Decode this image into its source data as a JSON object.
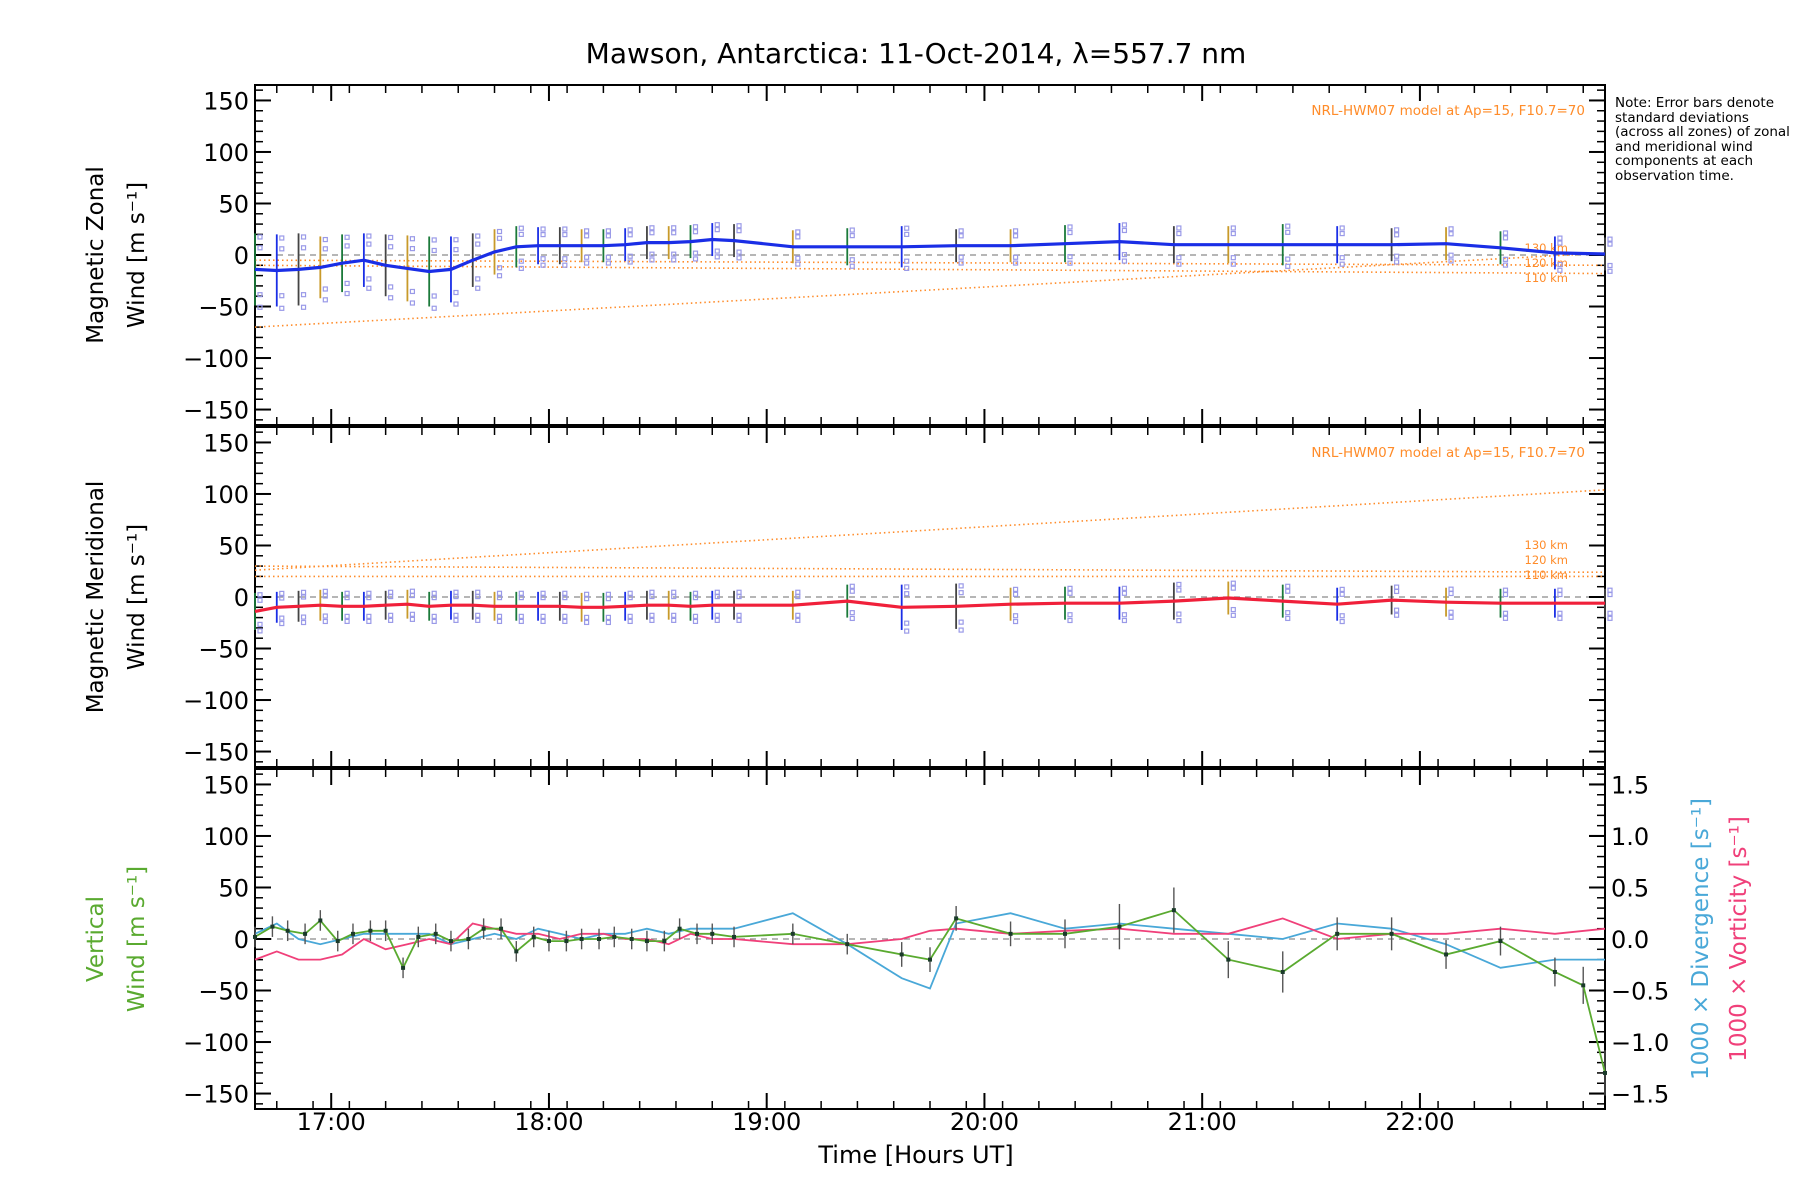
{
  "title": "Mawson, Antarctica: 11-Oct-2014, λ=557.7 nm",
  "note": "Note: Error bars denote standard deviations (across all zones) of zonal and meridional wind components at each observation time.",
  "xlabel": "Time [Hours UT]",
  "colors": {
    "zonal": "#1a2ee6",
    "meridional": "#f0203a",
    "vertical": "#5aaa30",
    "divergence": "#49a8d8",
    "vorticity": "#f0407a",
    "model": "#ff8c2a",
    "zone_points": "#9a9ae8",
    "axis": "#000000"
  },
  "chart_data": [
    {
      "type": "line",
      "panel": "zonal",
      "ylabel_line1": "Magnetic Zonal",
      "ylabel_line2": "Wind [m s⁻¹]",
      "model_label": "NRL-HWM07 model at Ap=15, F10.7=70",
      "model_alt_labels": [
        "130 km",
        "120 km",
        "110 km"
      ],
      "xlim": [
        16.65,
        22.85
      ],
      "ylim": [
        -165,
        165
      ],
      "y_ticks": [
        150,
        100,
        50,
        0,
        -50,
        -100,
        -150
      ],
      "x_ticks": [
        "17:00",
        "18:00",
        "19:00",
        "20:00",
        "21:00",
        "22:00"
      ],
      "series": [
        {
          "role": "wind",
          "x": [
            16.65,
            16.75,
            16.85,
            16.95,
            17.05,
            17.15,
            17.25,
            17.35,
            17.45,
            17.55,
            17.65,
            17.75,
            17.85,
            17.95,
            18.05,
            18.15,
            18.25,
            18.35,
            18.45,
            18.55,
            18.65,
            18.75,
            18.85,
            19.12,
            19.37,
            19.62,
            19.87,
            20.12,
            20.37,
            20.62,
            20.87,
            21.12,
            21.37,
            21.62,
            21.87,
            22.12,
            22.37,
            22.62,
            22.85
          ],
          "y": [
            -14,
            -15,
            -14,
            -12,
            -8,
            -5,
            -10,
            -13,
            -16,
            -14,
            -5,
            3,
            8,
            9,
            9,
            9,
            9,
            10,
            12,
            12,
            13,
            15,
            14,
            8,
            8,
            8,
            9,
            9,
            11,
            13,
            10,
            10,
            10,
            10,
            10,
            11,
            7,
            2,
            1
          ],
          "err": [
            35,
            35,
            35,
            30,
            28,
            26,
            30,
            32,
            34,
            32,
            26,
            22,
            20,
            18,
            18,
            16,
            16,
            16,
            16,
            16,
            16,
            16,
            16,
            16,
            18,
            20,
            16,
            16,
            18,
            18,
            18,
            18,
            20,
            18,
            16,
            16,
            16,
            16,
            16
          ]
        },
        {
          "role": "model",
          "label": "130 km",
          "x": [
            16.65,
            22.85
          ],
          "y": [
            -70,
            2
          ]
        },
        {
          "role": "model",
          "label": "120 km",
          "x": [
            16.65,
            22.85
          ],
          "y": [
            -5,
            -10
          ]
        },
        {
          "role": "model",
          "label": "110 km",
          "x": [
            16.65,
            22.85
          ],
          "y": [
            -10,
            -18
          ]
        }
      ]
    },
    {
      "type": "line",
      "panel": "meridional",
      "ylabel_line1": "Magnetic Meridional",
      "ylabel_line2": "Wind [m s⁻¹]",
      "model_label": "NRL-HWM07 model at Ap=15, F10.7=70",
      "model_alt_labels": [
        "130 km",
        "120 km",
        "110 km"
      ],
      "xlim": [
        16.65,
        22.85
      ],
      "ylim": [
        -165,
        165
      ],
      "y_ticks": [
        150,
        100,
        50,
        0,
        -50,
        -100,
        -150
      ],
      "series": [
        {
          "role": "wind",
          "x": [
            16.65,
            16.75,
            16.85,
            16.95,
            17.05,
            17.15,
            17.25,
            17.35,
            17.45,
            17.55,
            17.65,
            17.75,
            17.85,
            17.95,
            18.05,
            18.15,
            18.25,
            18.35,
            18.45,
            18.55,
            18.65,
            18.75,
            18.85,
            19.12,
            19.37,
            19.62,
            19.87,
            20.12,
            20.37,
            20.62,
            20.87,
            21.12,
            21.37,
            21.62,
            21.87,
            22.12,
            22.37,
            22.62,
            22.85
          ],
          "y": [
            -14,
            -10,
            -9,
            -8,
            -9,
            -9,
            -8,
            -7,
            -9,
            -8,
            -8,
            -9,
            -9,
            -9,
            -9,
            -10,
            -10,
            -9,
            -8,
            -8,
            -9,
            -8,
            -8,
            -8,
            -4,
            -10,
            -9,
            -7,
            -6,
            -6,
            -4,
            -1,
            -4,
            -7,
            -3,
            -5,
            -6,
            -6,
            -6
          ],
          "err": [
            18,
            15,
            15,
            15,
            14,
            14,
            14,
            14,
            14,
            14,
            14,
            14,
            14,
            14,
            14,
            14,
            14,
            14,
            14,
            14,
            14,
            14,
            14,
            14,
            16,
            22,
            22,
            16,
            16,
            16,
            18,
            16,
            16,
            16,
            14,
            14,
            14,
            14,
            14
          ]
        },
        {
          "role": "model",
          "label": "130 km",
          "x": [
            16.65,
            22.85
          ],
          "y": [
            26,
            104
          ]
        },
        {
          "role": "model",
          "label": "120 km",
          "x": [
            16.65,
            22.85
          ],
          "y": [
            30,
            24
          ]
        },
        {
          "role": "model",
          "label": "110 km",
          "x": [
            16.65,
            22.85
          ],
          "y": [
            20,
            20
          ]
        }
      ]
    },
    {
      "type": "line",
      "panel": "vertical",
      "ylabel_line1": "Vertical",
      "ylabel_line2": "Wind [m s⁻¹]",
      "ylabel_right1": "1000 × Divergence [s⁻¹]",
      "ylabel_right2": "1000 × Vorticity [s⁻¹]",
      "xlim": [
        16.65,
        22.85
      ],
      "ylim": [
        -165,
        165
      ],
      "y2lim": [
        -1.65,
        1.65
      ],
      "y_ticks": [
        150,
        100,
        50,
        0,
        -50,
        -100,
        -150
      ],
      "y2_ticks": [
        "1.5",
        "1.0",
        "0.5",
        "0.0",
        "−0.5",
        "−1.0",
        "−1.5"
      ],
      "y2_tick_values": [
        1.5,
        1.0,
        0.5,
        0.0,
        -0.5,
        -1.0,
        -1.5
      ],
      "series": [
        {
          "name": "Vertical",
          "x": [
            16.65,
            16.73,
            16.8,
            16.88,
            16.95,
            17.03,
            17.1,
            17.18,
            17.25,
            17.33,
            17.4,
            17.48,
            17.55,
            17.63,
            17.7,
            17.78,
            17.85,
            17.93,
            18.0,
            18.08,
            18.15,
            18.23,
            18.3,
            18.38,
            18.45,
            18.53,
            18.6,
            18.68,
            18.75,
            18.85,
            19.12,
            19.37,
            19.62,
            19.75,
            19.87,
            20.12,
            20.37,
            20.62,
            20.87,
            21.12,
            21.37,
            21.62,
            21.87,
            22.12,
            22.37,
            22.62,
            22.75,
            22.85
          ],
          "y": [
            2,
            12,
            8,
            5,
            18,
            -2,
            5,
            8,
            8,
            -28,
            2,
            5,
            -2,
            0,
            10,
            10,
            -12,
            2,
            -2,
            -2,
            0,
            0,
            2,
            0,
            -2,
            -2,
            10,
            5,
            5,
            2,
            5,
            -5,
            -15,
            -20,
            20,
            5,
            5,
            12,
            28,
            -20,
            -32,
            5,
            5,
            -15,
            -2,
            -32,
            -45,
            -130
          ],
          "err": [
            10,
            10,
            10,
            10,
            10,
            10,
            10,
            10,
            10,
            10,
            10,
            10,
            10,
            10,
            10,
            10,
            10,
            10,
            10,
            10,
            10,
            10,
            10,
            10,
            10,
            10,
            10,
            10,
            10,
            10,
            10,
            10,
            12,
            12,
            12,
            12,
            14,
            22,
            22,
            18,
            20,
            16,
            16,
            14,
            14,
            14,
            18,
            22
          ]
        },
        {
          "name": "1000 × Divergence",
          "axis": "right",
          "x": [
            16.65,
            16.75,
            16.85,
            16.95,
            17.05,
            17.15,
            17.25,
            17.35,
            17.45,
            17.55,
            17.65,
            17.75,
            17.85,
            17.95,
            18.05,
            18.15,
            18.25,
            18.35,
            18.45,
            18.55,
            18.65,
            18.75,
            18.85,
            19.12,
            19.37,
            19.62,
            19.75,
            19.87,
            20.12,
            20.37,
            20.62,
            20.87,
            21.12,
            21.37,
            21.62,
            21.87,
            22.12,
            22.37,
            22.62,
            22.85
          ],
          "y": [
            0.05,
            0.15,
            0.0,
            -0.05,
            0.0,
            0.05,
            0.05,
            0.05,
            0.05,
            -0.05,
            0.0,
            0.05,
            0.0,
            0.1,
            0.05,
            0.0,
            0.05,
            0.05,
            0.1,
            0.05,
            0.1,
            0.1,
            0.1,
            0.25,
            -0.05,
            -0.38,
            -0.48,
            0.15,
            0.25,
            0.1,
            0.15,
            0.1,
            0.05,
            0.0,
            0.15,
            0.1,
            -0.05,
            -0.28,
            -0.2,
            -0.2
          ]
        },
        {
          "name": "1000 × Vorticity",
          "axis": "right",
          "x": [
            16.65,
            16.75,
            16.85,
            16.95,
            17.05,
            17.15,
            17.25,
            17.35,
            17.45,
            17.55,
            17.65,
            17.75,
            17.85,
            17.95,
            18.05,
            18.15,
            18.25,
            18.35,
            18.45,
            18.55,
            18.65,
            18.75,
            18.85,
            19.12,
            19.37,
            19.62,
            19.75,
            19.87,
            20.12,
            20.37,
            20.62,
            20.87,
            21.12,
            21.37,
            21.62,
            21.87,
            22.12,
            22.37,
            22.62,
            22.85
          ],
          "y": [
            -0.2,
            -0.12,
            -0.2,
            -0.2,
            -0.15,
            0.0,
            -0.1,
            -0.05,
            0.0,
            -0.05,
            0.15,
            0.1,
            0.05,
            0.05,
            0.0,
            0.05,
            0.05,
            0.0,
            0.0,
            -0.05,
            0.05,
            0.0,
            0.0,
            -0.05,
            -0.05,
            0.0,
            0.08,
            0.1,
            0.05,
            0.08,
            0.1,
            0.05,
            0.05,
            0.2,
            0.0,
            0.05,
            0.05,
            0.1,
            0.05,
            0.1
          ]
        }
      ]
    }
  ]
}
